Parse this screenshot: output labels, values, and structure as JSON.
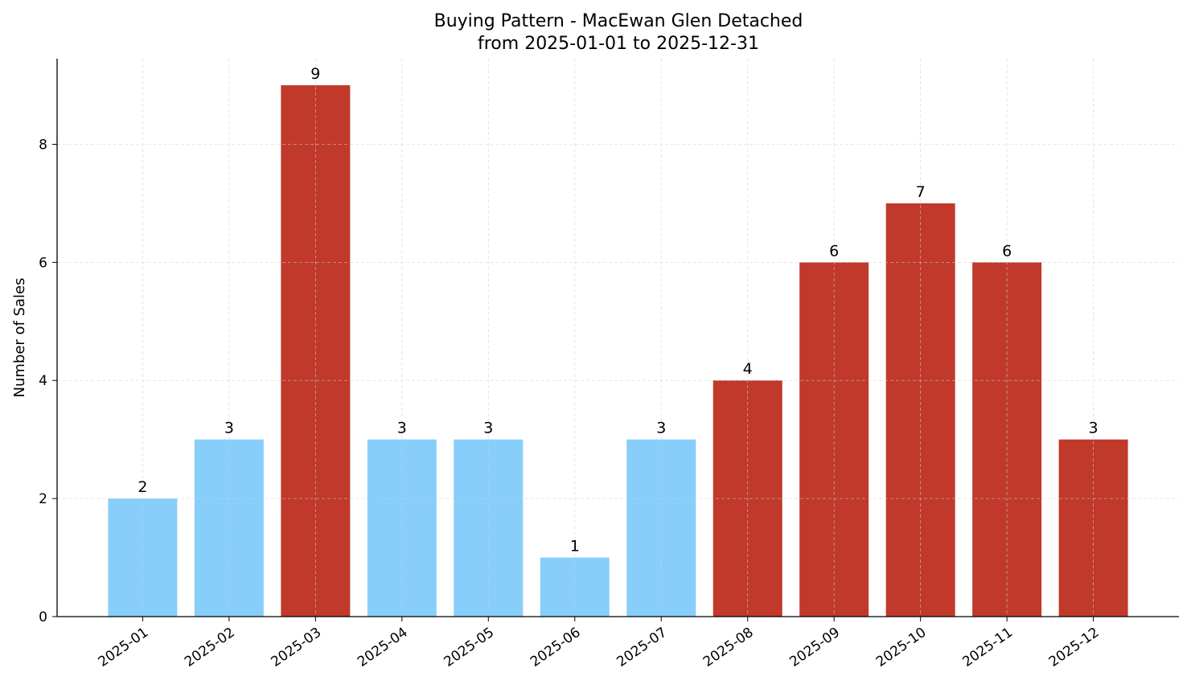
{
  "chart_data": {
    "type": "bar",
    "title": "Buying Pattern - MacEwan Glen Detached",
    "subtitle": "from 2025-01-01 to 2025-12-31",
    "xlabel": "",
    "ylabel": "Number of Sales",
    "categories": [
      "2025-01",
      "2025-02",
      "2025-03",
      "2025-04",
      "2025-05",
      "2025-06",
      "2025-07",
      "2025-08",
      "2025-09",
      "2025-10",
      "2025-11",
      "2025-12"
    ],
    "values": [
      2,
      3,
      9,
      3,
      3,
      1,
      3,
      4,
      6,
      7,
      6,
      3
    ],
    "bar_colors": [
      "#87CEFA",
      "#87CEFA",
      "#C0392B",
      "#87CEFA",
      "#87CEFA",
      "#87CEFA",
      "#87CEFA",
      "#C0392B",
      "#C0392B",
      "#C0392B",
      "#C0392B",
      "#C0392B"
    ],
    "yticks": [
      0,
      2,
      4,
      6,
      8
    ],
    "ylim": [
      0,
      9.45
    ],
    "grid": true,
    "data_labels": true
  }
}
